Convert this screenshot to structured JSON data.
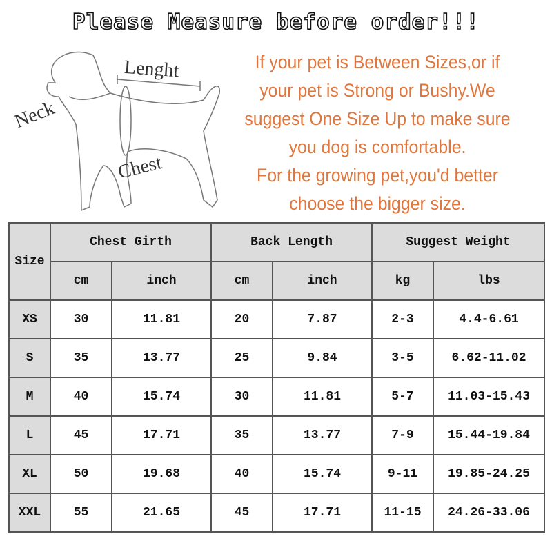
{
  "title": "Please Measure before order!!!",
  "diagram": {
    "labels": {
      "neck": "Neck",
      "length": "Lenght",
      "chest": "Chest"
    }
  },
  "note_lines": [
    "If your pet is Between Sizes,or if",
    "your pet is Strong or Bushy.We",
    "suggest One Size Up to make sure",
    "you dog is comfortable.",
    "For the growing pet,you'd better",
    "choose the bigger size."
  ],
  "colors": {
    "note": "#e0763c",
    "header_bg": "#dcdcdc"
  },
  "table": {
    "size_header": "Size",
    "groups": [
      "Chest Girth",
      "Back Length",
      "Suggest Weight"
    ],
    "units": [
      "cm",
      "inch",
      "cm",
      "inch",
      "kg",
      "lbs"
    ],
    "rows": [
      {
        "size": "XS",
        "cells": [
          "30",
          "11.81",
          "20",
          "7.87",
          "2-3",
          "4.4-6.61"
        ]
      },
      {
        "size": "S",
        "cells": [
          "35",
          "13.77",
          "25",
          "9.84",
          "3-5",
          "6.62-11.02"
        ]
      },
      {
        "size": "M",
        "cells": [
          "40",
          "15.74",
          "30",
          "11.81",
          "5-7",
          "11.03-15.43"
        ]
      },
      {
        "size": "L",
        "cells": [
          "45",
          "17.71",
          "35",
          "13.77",
          "7-9",
          "15.44-19.84"
        ]
      },
      {
        "size": "XL",
        "cells": [
          "50",
          "19.68",
          "40",
          "15.74",
          "9-11",
          "19.85-24.25"
        ]
      },
      {
        "size": "XXL",
        "cells": [
          "55",
          "21.65",
          "45",
          "17.71",
          "11-15",
          "24.26-33.06"
        ]
      }
    ]
  }
}
